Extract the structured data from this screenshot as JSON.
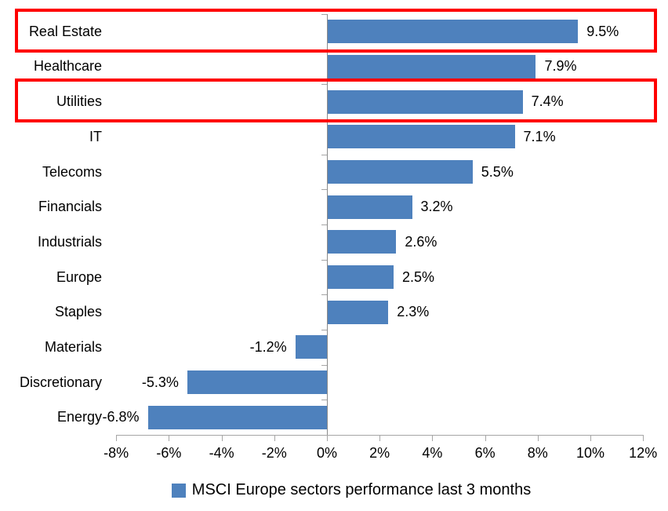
{
  "chart_data": {
    "type": "bar",
    "orientation": "horizontal",
    "title": "",
    "categories": [
      "Real Estate",
      "Healthcare",
      "Utilities",
      "IT",
      "Telecoms",
      "Financials",
      "Industrials",
      "Europe",
      "Staples",
      "Materials",
      "Discretionary",
      "Energy"
    ],
    "values": [
      9.5,
      7.9,
      7.4,
      7.1,
      5.5,
      3.2,
      2.6,
      2.5,
      2.3,
      -1.2,
      -5.3,
      -6.8
    ],
    "data_labels": [
      "9.5%",
      "7.9%",
      "7.4%",
      "7.1%",
      "5.5%",
      "3.2%",
      "2.6%",
      "2.5%",
      "2.3%",
      "-1.2%",
      "-5.3%",
      "-6.8%"
    ],
    "x_tick_values": [
      -8,
      -6,
      -4,
      -2,
      0,
      2,
      4,
      6,
      8,
      10,
      12
    ],
    "x_tick_labels": [
      "-8%",
      "-6%",
      "-4%",
      "-2%",
      "0%",
      "2%",
      "4%",
      "6%",
      "8%",
      "10%",
      "12%"
    ],
    "x_range": [
      -8,
      12
    ],
    "grid": false,
    "legend": {
      "label": "MSCI Europe sectors performance last 3 months",
      "position": "bottom",
      "marker": "square"
    },
    "colors": {
      "bar": "#4E81BD",
      "value_axis_line": "#A6A6A6",
      "category_axis_line": "#8A8A8A",
      "tick": "#A6A6A6",
      "text": "#000000",
      "highlight": "#FF0000"
    },
    "highlighted_categories": [
      "Real Estate",
      "Utilities"
    ]
  }
}
